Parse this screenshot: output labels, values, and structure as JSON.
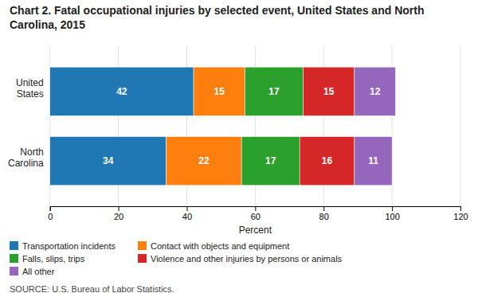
{
  "chart_data": {
    "type": "bar",
    "orientation": "horizontal",
    "stacked": true,
    "data_labels": true,
    "title": "Chart 2.  Fatal occupational injuries by selected event, United States and North Carolina, 2015",
    "source": "SOURCE: U.S. Bureau of Labor Statistics.",
    "xlabel": "Percent",
    "categories": [
      "United\nStates",
      "North\nCarolina"
    ],
    "series": [
      {
        "name": "Transportation incidents",
        "values": [
          42,
          34
        ]
      },
      {
        "name": "Contact with objects and equipment",
        "values": [
          15,
          22
        ]
      },
      {
        "name": "Falls, slips, trips",
        "values": [
          17,
          17
        ]
      },
      {
        "name": "Violence and other injuries by persons or animals",
        "values": [
          15,
          16
        ]
      },
      {
        "name": "All other",
        "values": [
          12,
          11
        ]
      }
    ],
    "xlim": [
      0,
      120
    ],
    "xticks": [
      0,
      20,
      40,
      60,
      80,
      100,
      120
    ],
    "grid": true,
    "legend": "bottom"
  }
}
